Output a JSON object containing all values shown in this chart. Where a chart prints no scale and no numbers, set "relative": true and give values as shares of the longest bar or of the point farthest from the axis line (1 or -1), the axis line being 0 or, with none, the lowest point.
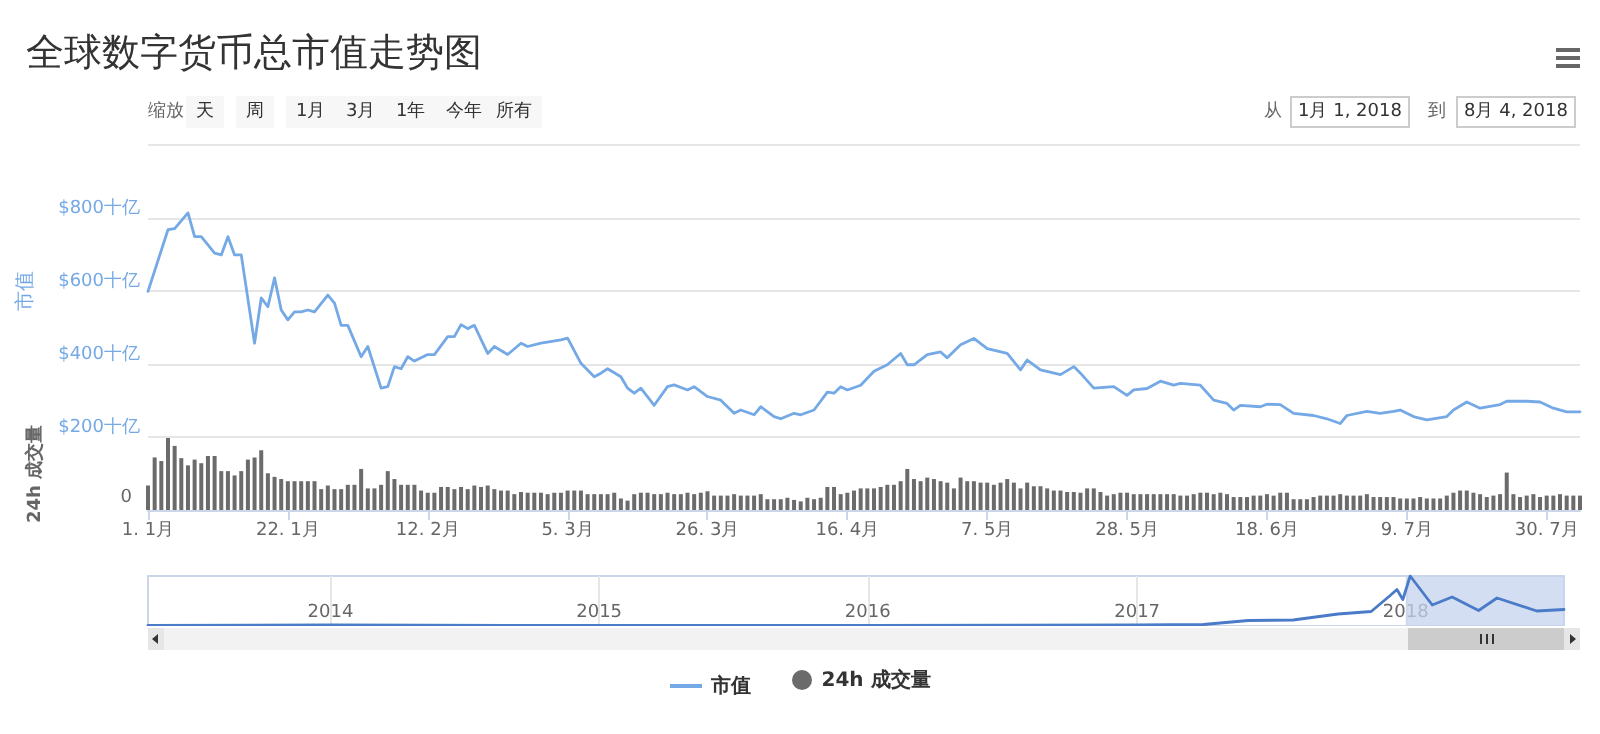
{
  "chart_data": [
    {
      "type": "line",
      "title": "全球数字货币总市值走势图",
      "ylabel": "市值",
      "annotations": [
        "缩放",
        "天",
        "周",
        "1月",
        "3月",
        "1年",
        "今年",
        "所有",
        "从",
        "1月 1, 2018",
        "到",
        "8月 4, 2018"
      ],
      "x": [
        "2018-01-01",
        "2018-01-04",
        "2018-01-05",
        "2018-01-07",
        "2018-01-08",
        "2018-01-09",
        "2018-01-11",
        "2018-01-12",
        "2018-01-13",
        "2018-01-14",
        "2018-01-15",
        "2018-01-17",
        "2018-01-18",
        "2018-01-19",
        "2018-01-20",
        "2018-01-21",
        "2018-01-22",
        "2018-01-23",
        "2018-01-24",
        "2018-01-25",
        "2018-01-26",
        "2018-01-28",
        "2018-01-29",
        "2018-01-30",
        "2018-01-31",
        "2018-02-02",
        "2018-02-03",
        "2018-02-05",
        "2018-02-06",
        "2018-02-07",
        "2018-02-08",
        "2018-02-09",
        "2018-02-10",
        "2018-02-12",
        "2018-02-13",
        "2018-02-15",
        "2018-02-16",
        "2018-02-17",
        "2018-02-18",
        "2018-02-19",
        "2018-02-21",
        "2018-02-22",
        "2018-02-24",
        "2018-02-26",
        "2018-02-27",
        "2018-03-01",
        "2018-03-04",
        "2018-03-05",
        "2018-03-07",
        "2018-03-09",
        "2018-03-10",
        "2018-03-11",
        "2018-03-13",
        "2018-03-14",
        "2018-03-15",
        "2018-03-16",
        "2018-03-18",
        "2018-03-20",
        "2018-03-21",
        "2018-03-23",
        "2018-03-24",
        "2018-03-26",
        "2018-03-28",
        "2018-03-30",
        "2018-03-31",
        "2018-04-02",
        "2018-04-03",
        "2018-04-05",
        "2018-04-06",
        "2018-04-08",
        "2018-04-09",
        "2018-04-11",
        "2018-04-13",
        "2018-04-14",
        "2018-04-15",
        "2018-04-16",
        "2018-04-18",
        "2018-04-20",
        "2018-04-22",
        "2018-04-24",
        "2018-04-25",
        "2018-04-26",
        "2018-04-28",
        "2018-04-30",
        "2018-05-01",
        "2018-05-03",
        "2018-05-05",
        "2018-05-07",
        "2018-05-10",
        "2018-05-12",
        "2018-05-13",
        "2018-05-15",
        "2018-05-18",
        "2018-05-20",
        "2018-05-21",
        "2018-05-23",
        "2018-05-26",
        "2018-05-28",
        "2018-05-29",
        "2018-05-31",
        "2018-06-02",
        "2018-06-04",
        "2018-06-05",
        "2018-06-08",
        "2018-06-10",
        "2018-06-12",
        "2018-06-13",
        "2018-06-14",
        "2018-06-17",
        "2018-06-18",
        "2018-06-20",
        "2018-06-22",
        "2018-06-25",
        "2018-06-27",
        "2018-06-29",
        "2018-06-30",
        "2018-07-03",
        "2018-07-05",
        "2018-07-07",
        "2018-07-08",
        "2018-07-10",
        "2018-07-12",
        "2018-07-15",
        "2018-07-16",
        "2018-07-18",
        "2018-07-20",
        "2018-07-23",
        "2018-07-24",
        "2018-07-27",
        "2018-07-29",
        "2018-07-31",
        "2018-08-02",
        "2018-08-04"
      ],
      "series": [
        {
          "name": "市值",
          "color": "#74a9e6",
          "values": [
            600,
            769,
            772,
            815,
            750,
            750,
            705,
            700,
            750,
            700,
            700,
            458,
            582,
            558,
            637,
            549,
            522,
            544,
            544,
            549,
            544,
            590,
            568,
            507,
            507,
            421,
            449,
            335,
            339,
            394,
            388,
            421,
            409,
            427,
            427,
            476,
            476,
            509,
            498,
            507,
            430,
            449,
            427,
            458,
            449,
            458,
            467,
            472,
            403,
            366,
            376,
            388,
            366,
            335,
            321,
            335,
            288,
            339,
            344,
            330,
            339,
            312,
            302,
            266,
            275,
            262,
            284,
            257,
            251,
            266,
            262,
            275,
            324,
            321,
            339,
            330,
            343,
            381,
            399,
            430,
            399,
            399,
            427,
            434,
            418,
            454,
            471,
            443,
            430,
            385,
            412,
            385,
            372,
            394,
            376,
            335,
            339,
            315,
            330,
            334,
            354,
            343,
            348,
            343,
            302,
            293,
            275,
            288,
            284,
            291,
            290,
            266,
            260,
            251,
            238,
            260,
            271,
            266,
            271,
            275,
            257,
            248,
            257,
            275,
            297,
            280,
            290,
            299,
            299,
            297,
            280,
            270,
            270
          ]
        }
      ],
      "xlim": [
        "2018-01-01",
        "2018-08-04"
      ],
      "ylim": [
        200,
        1000
      ],
      "yticks": [
        {
          "value": 200,
          "label": "$200十亿"
        },
        {
          "value": 400,
          "label": "$400十亿"
        },
        {
          "value": 600,
          "label": "$600十亿"
        },
        {
          "value": 800,
          "label": "$800十亿"
        },
        {
          "value": 1000,
          "label": null
        }
      ],
      "grid": "y",
      "legend": "bottom",
      "tick_labels": "y"
    },
    {
      "type": "bar",
      "ylabel": "24h 成交量",
      "annotations": [
        "0"
      ],
      "relative": true,
      "x": [
        "2018-01-01",
        "2018-01-02",
        "2018-01-03",
        "2018-01-04",
        "2018-01-05",
        "2018-01-06",
        "2018-01-07",
        "2018-01-08",
        "2018-01-09",
        "2018-01-10",
        "2018-01-11",
        "2018-01-12",
        "2018-01-13",
        "2018-01-14",
        "2018-01-15",
        "2018-01-16",
        "2018-01-17",
        "2018-01-18",
        "2018-01-19",
        "2018-01-20",
        "2018-01-21",
        "2018-01-22",
        "2018-01-23",
        "2018-01-24",
        "2018-01-25",
        "2018-01-26",
        "2018-01-27",
        "2018-01-28",
        "2018-01-29",
        "2018-01-30",
        "2018-01-31",
        "2018-02-01",
        "2018-02-02",
        "2018-02-03",
        "2018-02-04",
        "2018-02-05",
        "2018-02-06",
        "2018-02-07",
        "2018-02-08",
        "2018-02-09",
        "2018-02-10",
        "2018-02-11",
        "2018-02-12",
        "2018-02-13",
        "2018-02-14",
        "2018-02-15",
        "2018-02-16",
        "2018-02-17",
        "2018-02-18",
        "2018-02-19",
        "2018-02-20",
        "2018-02-21",
        "2018-02-22",
        "2018-02-23",
        "2018-02-24",
        "2018-02-25",
        "2018-02-26",
        "2018-02-27",
        "2018-02-28",
        "2018-03-01",
        "2018-03-02",
        "2018-03-03",
        "2018-03-04",
        "2018-03-05",
        "2018-03-06",
        "2018-03-07",
        "2018-03-08",
        "2018-03-09",
        "2018-03-10",
        "2018-03-11",
        "2018-03-12",
        "2018-03-13",
        "2018-03-14",
        "2018-03-15",
        "2018-03-16",
        "2018-03-17",
        "2018-03-18",
        "2018-03-19",
        "2018-03-20",
        "2018-03-21",
        "2018-03-22",
        "2018-03-23",
        "2018-03-24",
        "2018-03-25",
        "2018-03-26",
        "2018-03-27",
        "2018-03-28",
        "2018-03-29",
        "2018-03-30",
        "2018-03-31",
        "2018-04-01",
        "2018-04-02",
        "2018-04-03",
        "2018-04-04",
        "2018-04-05",
        "2018-04-06",
        "2018-04-07",
        "2018-04-08",
        "2018-04-09",
        "2018-04-10",
        "2018-04-11",
        "2018-04-12",
        "2018-04-13",
        "2018-04-14",
        "2018-04-15",
        "2018-04-16",
        "2018-04-17",
        "2018-04-18",
        "2018-04-19",
        "2018-04-20",
        "2018-04-21",
        "2018-04-22",
        "2018-04-23",
        "2018-04-24",
        "2018-04-25",
        "2018-04-26",
        "2018-04-27",
        "2018-04-28",
        "2018-04-29",
        "2018-04-30",
        "2018-05-01",
        "2018-05-02",
        "2018-05-03",
        "2018-05-04",
        "2018-05-05",
        "2018-05-06",
        "2018-05-07",
        "2018-05-08",
        "2018-05-09",
        "2018-05-10",
        "2018-05-11",
        "2018-05-12",
        "2018-05-13",
        "2018-05-14",
        "2018-05-15",
        "2018-05-16",
        "2018-05-17",
        "2018-05-18",
        "2018-05-19",
        "2018-05-20",
        "2018-05-21",
        "2018-05-22",
        "2018-05-23",
        "2018-05-24",
        "2018-05-25",
        "2018-05-26",
        "2018-05-27",
        "2018-05-28",
        "2018-05-29",
        "2018-05-30",
        "2018-05-31",
        "2018-06-01",
        "2018-06-02",
        "2018-06-03",
        "2018-06-04",
        "2018-06-05",
        "2018-06-06",
        "2018-06-07",
        "2018-06-08",
        "2018-06-09",
        "2018-06-10",
        "2018-06-11",
        "2018-06-12",
        "2018-06-13",
        "2018-06-14",
        "2018-06-15",
        "2018-06-16",
        "2018-06-17",
        "2018-06-18",
        "2018-06-19",
        "2018-06-20",
        "2018-06-21",
        "2018-06-22",
        "2018-06-23",
        "2018-06-24",
        "2018-06-25",
        "2018-06-26",
        "2018-06-27",
        "2018-06-28",
        "2018-06-29",
        "2018-06-30",
        "2018-07-01",
        "2018-07-02",
        "2018-07-03",
        "2018-07-04",
        "2018-07-05",
        "2018-07-06",
        "2018-07-07",
        "2018-07-08",
        "2018-07-09",
        "2018-07-10",
        "2018-07-11",
        "2018-07-12",
        "2018-07-13",
        "2018-07-14",
        "2018-07-15",
        "2018-07-16",
        "2018-07-17",
        "2018-07-18",
        "2018-07-19",
        "2018-07-20",
        "2018-07-21",
        "2018-07-22",
        "2018-07-23",
        "2018-07-24",
        "2018-07-25",
        "2018-07-26",
        "2018-07-27",
        "2018-07-28",
        "2018-07-29",
        "2018-07-30",
        "2018-07-31",
        "2018-08-01",
        "2018-08-02",
        "2018-08-03",
        "2018-08-04"
      ],
      "series": [
        {
          "name": "24h 成交量",
          "color": "#6b6b6b",
          "values": [
            0.34,
            0.73,
            0.68,
            1,
            0.89,
            0.72,
            0.62,
            0.7,
            0.65,
            0.75,
            0.75,
            0.54,
            0.54,
            0.48,
            0.54,
            0.7,
            0.73,
            0.83,
            0.51,
            0.46,
            0.43,
            0.4,
            0.4,
            0.4,
            0.4,
            0.4,
            0.29,
            0.34,
            0.29,
            0.29,
            0.35,
            0.35,
            0.57,
            0.3,
            0.3,
            0.35,
            0.54,
            0.43,
            0.35,
            0.35,
            0.35,
            0.27,
            0.24,
            0.24,
            0.32,
            0.32,
            0.29,
            0.32,
            0.29,
            0.34,
            0.32,
            0.34,
            0.29,
            0.27,
            0.27,
            0.22,
            0.25,
            0.24,
            0.24,
            0.24,
            0.22,
            0.24,
            0.24,
            0.27,
            0.27,
            0.27,
            0.22,
            0.22,
            0.22,
            0.22,
            0.24,
            0.16,
            0.13,
            0.22,
            0.24,
            0.24,
            0.22,
            0.22,
            0.24,
            0.22,
            0.22,
            0.24,
            0.22,
            0.24,
            0.26,
            0.2,
            0.2,
            0.2,
            0.22,
            0.2,
            0.2,
            0.2,
            0.22,
            0.15,
            0.15,
            0.15,
            0.17,
            0.14,
            0.12,
            0.17,
            0.15,
            0.17,
            0.32,
            0.32,
            0.22,
            0.24,
            0.27,
            0.3,
            0.3,
            0.3,
            0.32,
            0.35,
            0.35,
            0.4,
            0.57,
            0.43,
            0.4,
            0.45,
            0.43,
            0.4,
            0.38,
            0.3,
            0.45,
            0.4,
            0.4,
            0.38,
            0.38,
            0.35,
            0.38,
            0.43,
            0.38,
            0.3,
            0.38,
            0.33,
            0.33,
            0.3,
            0.27,
            0.27,
            0.25,
            0.25,
            0.24,
            0.3,
            0.3,
            0.25,
            0.2,
            0.22,
            0.24,
            0.24,
            0.22,
            0.22,
            0.22,
            0.22,
            0.22,
            0.22,
            0.22,
            0.2,
            0.2,
            0.22,
            0.24,
            0.24,
            0.22,
            0.24,
            0.22,
            0.18,
            0.18,
            0.18,
            0.2,
            0.2,
            0.22,
            0.2,
            0.24,
            0.24,
            0.15,
            0.15,
            0.15,
            0.18,
            0.2,
            0.2,
            0.2,
            0.22,
            0.2,
            0.2,
            0.2,
            0.22,
            0.18,
            0.18,
            0.18,
            0.18,
            0.16,
            0.16,
            0.16,
            0.18,
            0.16,
            0.16,
            0.16,
            0.2,
            0.24,
            0.27,
            0.27,
            0.24,
            0.22,
            0.18,
            0.2,
            0.22,
            0.52,
            0.22,
            0.18,
            0.2,
            0.22,
            0.18,
            0.2,
            0.2,
            0.22,
            0.2,
            0.2,
            0.2
          ]
        }
      ],
      "xlim": [
        "2018-01-01",
        "2018-08-04"
      ],
      "xticks": [
        {
          "value": "2018-01-01",
          "label": "1. 1月"
        },
        {
          "value": "2018-01-22",
          "label": "22. 1月"
        },
        {
          "value": "2018-02-12",
          "label": "12. 2月"
        },
        {
          "value": "2018-03-05",
          "label": "5. 3月"
        },
        {
          "value": "2018-03-26",
          "label": "26. 3月"
        },
        {
          "value": "2018-04-16",
          "label": "16. 4月"
        },
        {
          "value": "2018-05-07",
          "label": "7. 5月"
        },
        {
          "value": "2018-05-28",
          "label": "28. 5月"
        },
        {
          "value": "2018-06-18",
          "label": "18. 6月"
        },
        {
          "value": "2018-07-09",
          "label": "9. 7月"
        },
        {
          "value": "2018-07-30",
          "label": "30. 7月"
        }
      ],
      "legend": "bottom",
      "tick_labels": "x"
    },
    {
      "type": "line",
      "relative": true,
      "x": [
        "2013-04-28",
        "2014-01-01",
        "2015-01-01",
        "2016-01-01",
        "2017-01-01",
        "2017-04-01",
        "2017-06-01",
        "2017-08-01",
        "2017-10-01",
        "2017-11-15",
        "2017-12-10",
        "2017-12-20",
        "2017-12-28",
        "2018-01-07",
        "2018-02-06",
        "2018-03-05",
        "2018-04-10",
        "2018-05-05",
        "2018-06-28",
        "2018-08-04"
      ],
      "series": [
        {
          "color": "#4a7bc8",
          "values": [
            0.01,
            0.02,
            0.01,
            0.01,
            0.02,
            0.03,
            0.11,
            0.12,
            0.24,
            0.29,
            0.6,
            0.73,
            0.53,
            1,
            0.42,
            0.58,
            0.31,
            0.56,
            0.3,
            0.33
          ]
        }
      ],
      "xlim": [
        "2013-04-28",
        "2018-08-04"
      ],
      "xticks": [
        "2014",
        "2015",
        "2016",
        "2017",
        "2018"
      ],
      "bands": [
        {
          "axis": "x",
          "from": "2018-01-01",
          "to": "2018-08-04",
          "color": "#c5d3ee"
        }
      ],
      "grid": "x",
      "tick_labels": "x"
    }
  ]
}
